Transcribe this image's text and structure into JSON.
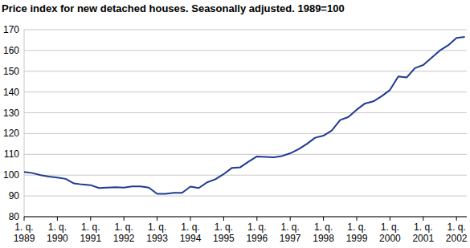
{
  "chart_data": {
    "type": "line",
    "title": "Price index for new detached houses. Seasonally adjusted. 1989=100",
    "categories": [
      "1. q.\n1989",
      null,
      null,
      null,
      "1. q.\n1990",
      null,
      null,
      null,
      "1. q.\n1991",
      null,
      null,
      null,
      "1. q.\n1992",
      null,
      null,
      null,
      "1. q.\n1993",
      null,
      null,
      null,
      "1. q.\n1994",
      null,
      null,
      null,
      "1. q.\n1995",
      null,
      null,
      null,
      "1. q.\n1996",
      null,
      null,
      null,
      "1. q.\n1997",
      null,
      null,
      null,
      "1. q.\n1998",
      null,
      null,
      null,
      "1. q.\n1999",
      null,
      null,
      null,
      "1. q.\n2000",
      null,
      null,
      null,
      "1. q.\n2001",
      null,
      null,
      null,
      "1. q.\n2002",
      null
    ],
    "values": [
      101.5,
      101,
      100,
      99.3,
      98.8,
      98.2,
      96,
      95.5,
      95.2,
      93.8,
      94,
      94.2,
      94,
      94.6,
      94.6,
      94,
      91,
      91,
      91.5,
      91.5,
      94.5,
      93.8,
      96.5,
      98,
      100.5,
      103.5,
      103.8,
      106.5,
      109,
      108.8,
      108.6,
      109.2,
      110.5,
      112.5,
      115,
      118,
      119,
      121.5,
      126.5,
      128,
      131.5,
      134.5,
      135.5,
      138,
      141,
      147.5,
      147,
      151.5,
      153,
      156.5,
      160,
      162.5,
      166,
      166.5
    ],
    "color": "#1f3a93",
    "ylim": [
      80,
      170
    ],
    "yticks": [
      80,
      90,
      100,
      110,
      120,
      130,
      140,
      150,
      160,
      170
    ],
    "grid": true
  }
}
